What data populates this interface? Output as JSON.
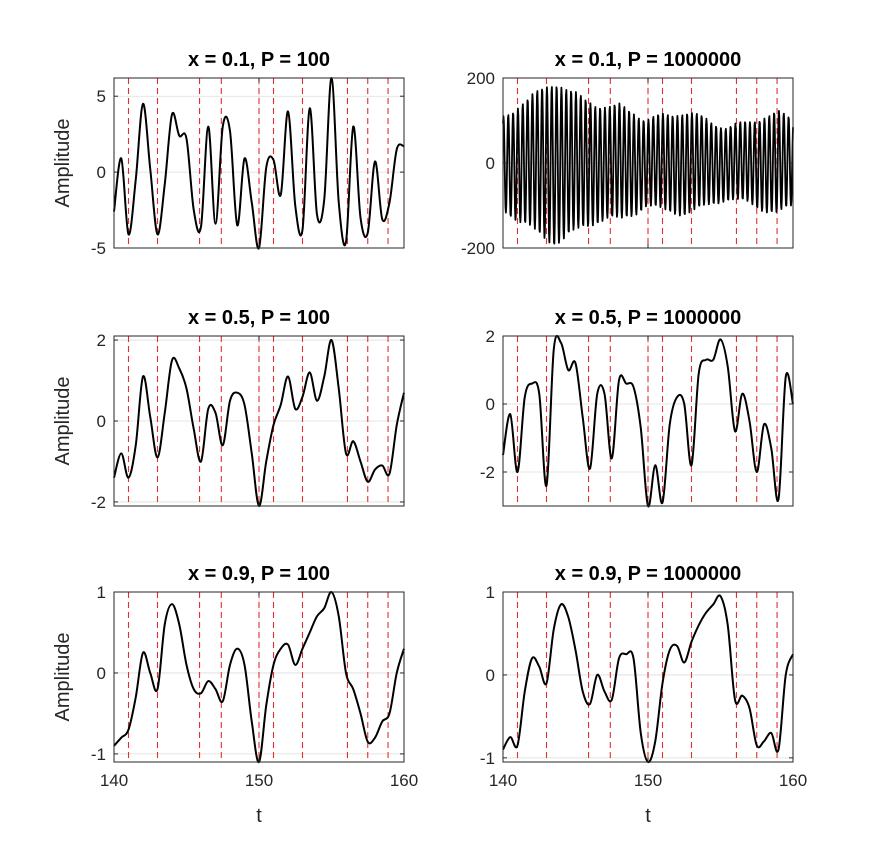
{
  "colors": {
    "signal": "#000000",
    "marker": "#e03030",
    "grid": "#dedede",
    "axis": "#262626"
  },
  "chart_data": [
    {
      "type": "line",
      "title": "x = 0.1,  P = 100",
      "xlabel": "",
      "ylabel": "Amplitude",
      "xlim": [
        140,
        160
      ],
      "ylim": [
        -5,
        6.2
      ],
      "yticks": [
        -5,
        0,
        5
      ],
      "ytick_labels": [
        "-5",
        "0",
        "5"
      ],
      "xticks": [
        140,
        150,
        160
      ],
      "xtick_labels": [
        "",
        "",
        ""
      ],
      "grid": true,
      "event_lines_t": [
        141.0,
        143.0,
        145.9,
        147.4,
        150.0,
        151.0,
        153.0,
        156.1,
        157.5,
        158.9
      ],
      "series": [
        {
          "t": [
            140.0,
            140.5,
            141.0,
            141.5,
            142.0,
            142.5,
            143.0,
            143.5,
            144.0,
            144.5,
            145.0,
            145.5,
            146.0,
            146.5,
            147.0,
            147.5,
            148.0,
            148.5,
            149.0,
            149.5,
            150.0,
            150.5,
            151.0,
            151.5,
            152.0,
            152.5,
            153.0,
            153.5,
            154.0,
            154.5,
            155.0,
            155.5,
            156.0,
            156.5,
            157.0,
            157.5,
            158.0,
            158.5,
            159.0,
            159.5,
            160.0
          ],
          "v": [
            -2.6,
            0.9,
            -4.1,
            -0.5,
            4.5,
            0.2,
            -4.1,
            -0.8,
            3.8,
            2.4,
            2.2,
            -2.5,
            -3.6,
            3.0,
            -3.4,
            3.0,
            2.7,
            -3.5,
            0.9,
            -2.0,
            -5.0,
            0.3,
            0.8,
            -1.5,
            4.0,
            -2.2,
            -3.8,
            4.2,
            -2.8,
            -1.8,
            6.2,
            -2.0,
            -4.6,
            3.0,
            -3.0,
            -4.0,
            0.7,
            -3.1,
            -2.0,
            1.5,
            1.7
          ]
        }
      ]
    },
    {
      "type": "line",
      "title": "x = 0.1,  P = 1000000",
      "xlabel": "",
      "ylabel": "",
      "xlim": [
        140,
        160
      ],
      "ylim": [
        -200,
        200
      ],
      "yticks": [
        -200,
        0,
        200
      ],
      "ytick_labels": [
        "-200",
        "0",
        "200"
      ],
      "xticks": [
        140,
        150,
        160
      ],
      "xtick_labels": [
        "",
        "",
        ""
      ],
      "grid": true,
      "event_lines_t": [
        141.0,
        143.0,
        145.9,
        147.4,
        150.0,
        151.0,
        153.0,
        156.1,
        157.5,
        158.9
      ],
      "series": [
        {
          "t": [
            140.0,
            140.9,
            141.8,
            142.7,
            143.6,
            144.5,
            145.4,
            146.3,
            147.2,
            148.1,
            149.0,
            149.9,
            150.8,
            151.7,
            152.6,
            153.5,
            154.4,
            155.3,
            156.2,
            157.1,
            158.0,
            158.9,
            160.0
          ],
          "amplitude_envelope": [
            110,
            130,
            150,
            175,
            190,
            170,
            155,
            140,
            130,
            135,
            120,
            100,
            110,
            115,
            120,
            110,
            95,
            85,
            90,
            95,
            110,
            120,
            100
          ]
        }
      ]
    },
    {
      "type": "line",
      "title": "x = 0.5,  P = 100",
      "xlabel": "",
      "ylabel": "Amplitude",
      "xlim": [
        140,
        160
      ],
      "ylim": [
        -2.1,
        2.1
      ],
      "yticks": [
        -2,
        0,
        2
      ],
      "ytick_labels": [
        "-2",
        "0",
        "2"
      ],
      "xticks": [
        140,
        150,
        160
      ],
      "xtick_labels": [
        "",
        "",
        ""
      ],
      "grid": true,
      "event_lines_t": [
        141.0,
        143.0,
        145.9,
        147.4,
        150.0,
        151.0,
        153.0,
        156.1,
        157.5,
        158.9
      ],
      "series": [
        {
          "t": [
            140.0,
            140.5,
            141.0,
            141.5,
            142.0,
            142.5,
            143.0,
            143.5,
            144.0,
            144.5,
            145.0,
            145.5,
            146.0,
            146.5,
            147.0,
            147.5,
            148.0,
            148.5,
            149.0,
            149.5,
            150.0,
            150.5,
            151.0,
            151.5,
            152.0,
            152.5,
            153.0,
            153.5,
            154.0,
            154.5,
            155.0,
            155.5,
            156.0,
            156.5,
            157.0,
            157.5,
            158.0,
            158.5,
            159.0,
            159.5,
            160.0
          ],
          "v": [
            -1.4,
            -0.8,
            -1.4,
            -0.6,
            1.1,
            0.1,
            -0.9,
            0.2,
            1.5,
            1.3,
            0.8,
            -0.2,
            -1.0,
            0.3,
            0.2,
            -0.6,
            0.5,
            0.7,
            0.4,
            -0.8,
            -2.1,
            -1.0,
            -0.1,
            0.4,
            1.1,
            0.3,
            0.6,
            1.2,
            0.5,
            1.1,
            2.0,
            0.8,
            -0.8,
            -0.5,
            -1.0,
            -1.5,
            -1.2,
            -1.1,
            -1.3,
            -0.1,
            0.7
          ]
        }
      ]
    },
    {
      "type": "line",
      "title": "x = 0.5,  P = 1000000",
      "xlabel": "",
      "ylabel": "",
      "xlim": [
        140,
        160
      ],
      "ylim": [
        -3,
        2
      ],
      "yticks": [
        -2,
        0,
        2
      ],
      "ytick_labels": [
        "-2",
        "0",
        "2"
      ],
      "xticks": [
        140,
        150,
        160
      ],
      "xtick_labels": [
        "",
        "",
        ""
      ],
      "grid": true,
      "event_lines_t": [
        141.0,
        143.0,
        145.9,
        147.4,
        150.0,
        151.0,
        153.0,
        156.1,
        157.5,
        158.9
      ],
      "series": [
        {
          "t": [
            140.0,
            140.5,
            141.0,
            141.5,
            142.0,
            142.5,
            143.0,
            143.5,
            144.0,
            144.5,
            145.0,
            145.5,
            146.0,
            146.5,
            147.0,
            147.5,
            148.0,
            148.5,
            149.0,
            149.5,
            150.0,
            150.5,
            151.0,
            151.5,
            152.0,
            152.5,
            153.0,
            153.5,
            154.0,
            154.5,
            155.0,
            155.5,
            156.0,
            156.5,
            157.0,
            157.5,
            158.0,
            158.5,
            159.0,
            159.5,
            160.0
          ],
          "v": [
            -1.5,
            -0.3,
            -2.0,
            0.2,
            0.6,
            0.3,
            -2.4,
            1.6,
            1.8,
            1.0,
            1.2,
            -0.4,
            -1.9,
            0.3,
            0.3,
            -1.6,
            0.7,
            0.6,
            0.5,
            -0.7,
            -3.0,
            -1.8,
            -2.9,
            -0.6,
            0.2,
            0.0,
            -1.8,
            0.9,
            1.3,
            1.3,
            1.9,
            1.1,
            -0.8,
            0.3,
            -0.5,
            -2.0,
            -0.6,
            -1.3,
            -2.8,
            0.8,
            0.0
          ]
        }
      ]
    },
    {
      "type": "line",
      "title": "x = 0.9,  P = 100",
      "xlabel": "t",
      "ylabel": "Amplitude",
      "xlim": [
        140,
        160
      ],
      "ylim": [
        -1.1,
        1.0
      ],
      "yticks": [
        -1,
        0,
        1
      ],
      "ytick_labels": [
        "-1",
        "0",
        "1"
      ],
      "xticks": [
        140,
        150,
        160
      ],
      "xtick_labels": [
        "140",
        "150",
        "160"
      ],
      "grid": true,
      "event_lines_t": [
        141.0,
        143.0,
        145.9,
        147.4,
        150.0,
        151.0,
        153.0,
        156.1,
        157.5,
        158.9
      ],
      "series": [
        {
          "t": [
            140.0,
            140.5,
            141.0,
            141.5,
            142.0,
            142.5,
            143.0,
            143.5,
            144.0,
            144.5,
            145.0,
            145.5,
            146.0,
            146.5,
            147.0,
            147.5,
            148.0,
            148.5,
            149.0,
            149.5,
            150.0,
            150.5,
            151.0,
            151.5,
            152.0,
            152.5,
            153.0,
            153.5,
            154.0,
            154.5,
            155.0,
            155.5,
            156.0,
            156.5,
            157.0,
            157.5,
            158.0,
            158.5,
            159.0,
            159.5,
            160.0
          ],
          "v": [
            -0.9,
            -0.8,
            -0.7,
            -0.3,
            0.25,
            0.0,
            -0.2,
            0.6,
            0.85,
            0.6,
            0.1,
            -0.2,
            -0.25,
            -0.1,
            -0.2,
            -0.35,
            0.1,
            0.3,
            0.1,
            -0.6,
            -1.1,
            -0.4,
            0.1,
            0.3,
            0.35,
            0.1,
            0.3,
            0.5,
            0.7,
            0.8,
            1.0,
            0.7,
            0.0,
            -0.2,
            -0.5,
            -0.85,
            -0.8,
            -0.6,
            -0.5,
            0.0,
            0.3
          ]
        }
      ]
    },
    {
      "type": "line",
      "title": "x = 0.9,  P = 1000000",
      "xlabel": "t",
      "ylabel": "",
      "xlim": [
        140,
        160
      ],
      "ylim": [
        -1.05,
        1.0
      ],
      "yticks": [
        -1,
        0,
        1
      ],
      "ytick_labels": [
        "-1",
        "0",
        "1"
      ],
      "xticks": [
        140,
        150,
        160
      ],
      "xtick_labels": [
        "140",
        "150",
        "160"
      ],
      "grid": true,
      "event_lines_t": [
        141.0,
        143.0,
        145.9,
        147.4,
        150.0,
        151.0,
        153.0,
        156.1,
        157.5,
        158.9
      ],
      "series": [
        {
          "t": [
            140.0,
            140.5,
            141.0,
            141.5,
            142.0,
            142.5,
            143.0,
            143.5,
            144.0,
            144.5,
            145.0,
            145.5,
            146.0,
            146.5,
            147.0,
            147.5,
            148.0,
            148.5,
            149.0,
            149.5,
            150.0,
            150.5,
            151.0,
            151.5,
            152.0,
            152.5,
            153.0,
            153.5,
            154.0,
            154.5,
            155.0,
            155.5,
            156.0,
            156.5,
            157.0,
            157.5,
            158.0,
            158.5,
            159.0,
            159.5,
            160.0
          ],
          "v": [
            -0.9,
            -0.75,
            -0.85,
            -0.2,
            0.2,
            0.1,
            -0.1,
            0.55,
            0.85,
            0.7,
            0.3,
            -0.2,
            -0.35,
            0.0,
            -0.2,
            -0.3,
            0.2,
            0.25,
            0.2,
            -0.7,
            -1.05,
            -0.8,
            -0.1,
            0.3,
            0.35,
            0.15,
            0.4,
            0.6,
            0.75,
            0.85,
            0.95,
            0.6,
            -0.3,
            -0.25,
            -0.4,
            -0.85,
            -0.8,
            -0.7,
            -0.9,
            0.0,
            0.25
          ]
        }
      ]
    }
  ]
}
